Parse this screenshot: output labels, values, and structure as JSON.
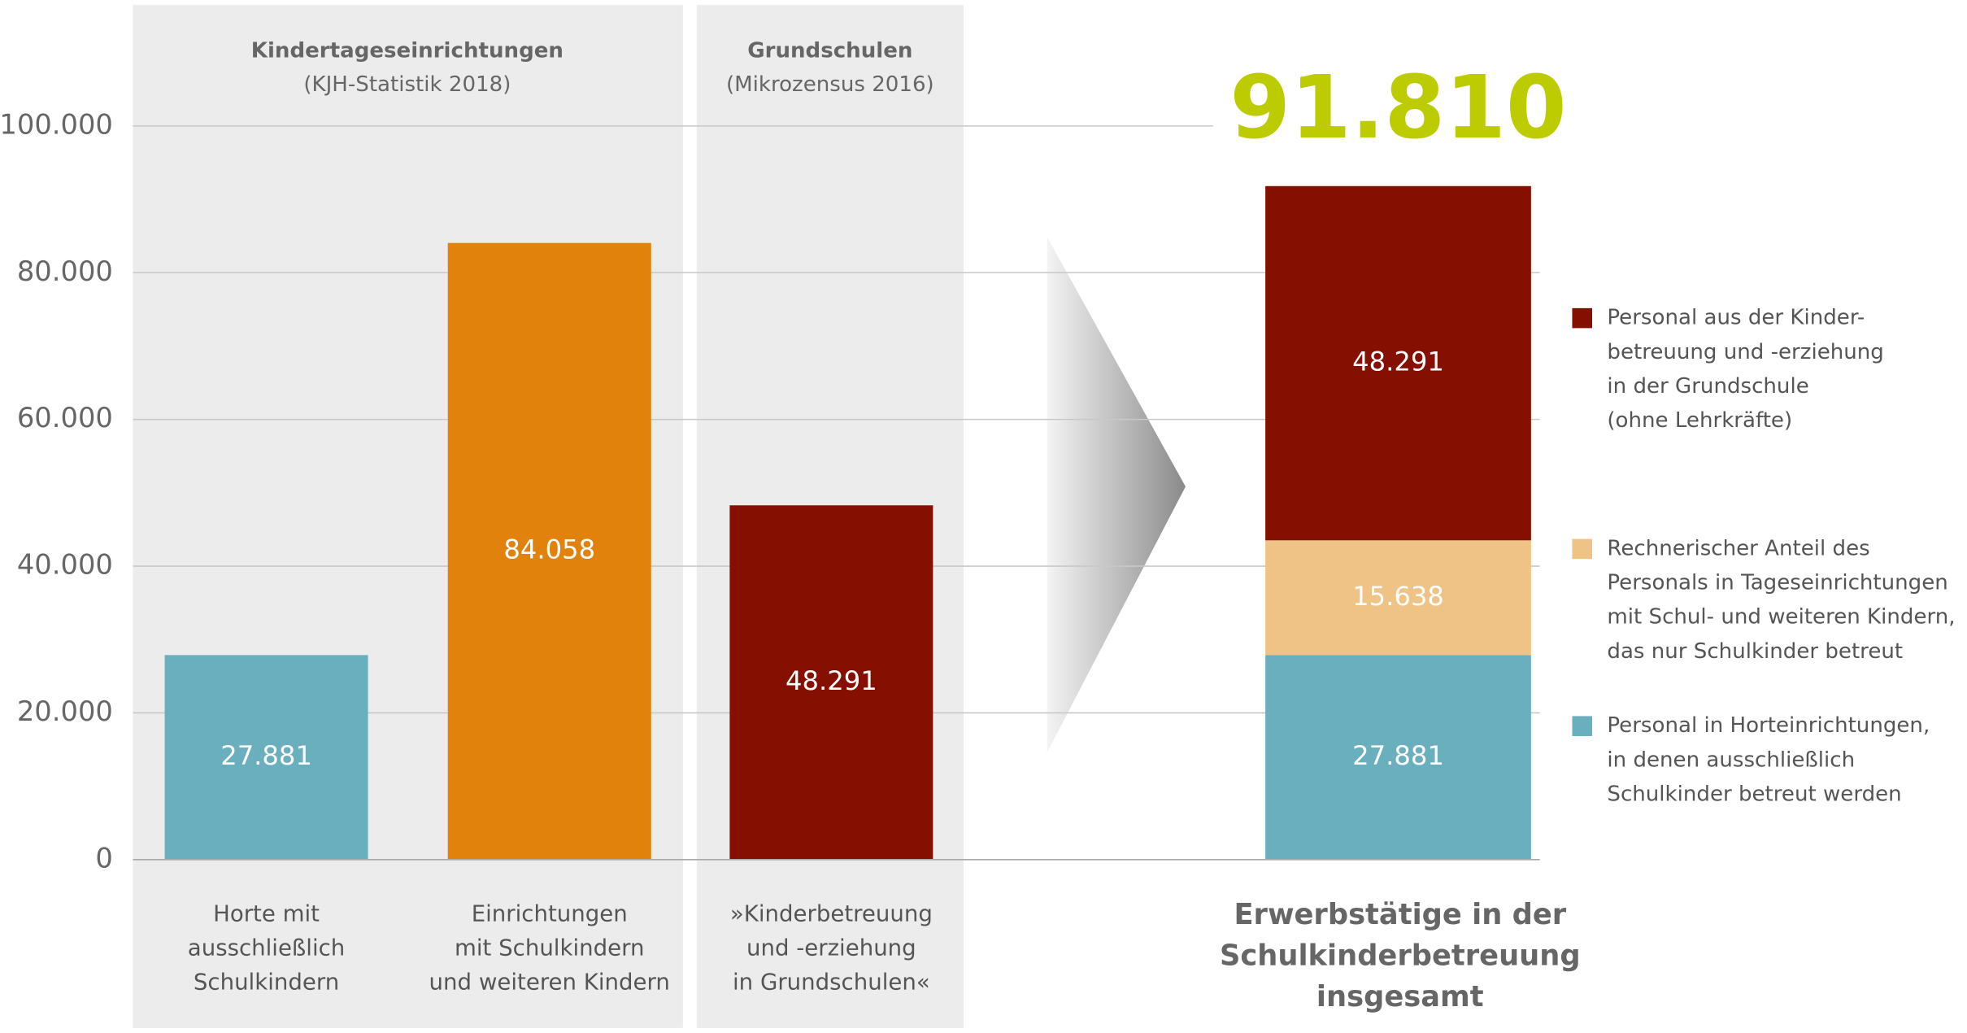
{
  "chart_data": {
    "type": "bar",
    "groups": [
      {
        "title": "Kindertageseinrichtungen",
        "subtitle": "(KJH-Statistik 2018)"
      },
      {
        "title": "Grundschulen",
        "subtitle": "(Mikrozensus 2016)"
      }
    ],
    "categories": [
      [
        "Horte mit",
        "ausschließlich",
        "Schulkindern"
      ],
      [
        "Einrichtungen",
        "mit Schulkindern",
        "und weiteren Kindern"
      ],
      [
        "»Kinderbetreuung",
        "und -erziehung",
        "in Grundschulen«"
      ]
    ],
    "values": [
      27881,
      84058,
      48291
    ],
    "value_labels": [
      "27.881",
      "84.058",
      "48.291"
    ],
    "colors": [
      "#6aafbd",
      "#e0820c",
      "#850f00"
    ],
    "ylim": [
      0,
      100000
    ],
    "yticks": [
      0,
      {
        "value": 20000,
        "label": "20.000"
      },
      {
        "value": 40000,
        "label": "40.000"
      },
      {
        "value": 60000,
        "label": "60.000"
      },
      {
        "value": 80000,
        "label": "80.000"
      },
      {
        "value": 100000,
        "label": "100.000"
      }
    ],
    "grid": true,
    "stack": {
      "type": "stacked_bar",
      "total": {
        "value": 91810,
        "label": "91.810"
      },
      "title": [
        "Erwerbstätige in der",
        "Schulkinderbetreuung",
        "insgesamt"
      ],
      "series": [
        {
          "name": [
            "Personal in Horteinrichtungen,",
            "in denen ausschließlich",
            "Schulkinder betreut werden"
          ],
          "color": "#6aafbd",
          "values": [
            27881
          ],
          "value_labels": [
            "27.881"
          ]
        },
        {
          "name": [
            "Rechnerischer Anteil des",
            "Personals in Tageseinrichtungen",
            "mit Schul- und weiteren Kindern,",
            "das nur Schulkinder betreut"
          ],
          "color": "#efc385",
          "values": [
            15638
          ],
          "value_labels": [
            "15.638"
          ]
        },
        {
          "name": [
            "Personal aus der Kinder-",
            "betreuung und -erziehung",
            "in der Grundschule",
            "(ohne Lehrkräfte)"
          ],
          "color": "#850f00",
          "values": [
            48291
          ],
          "value_labels": [
            "48.291"
          ]
        }
      ]
    }
  }
}
